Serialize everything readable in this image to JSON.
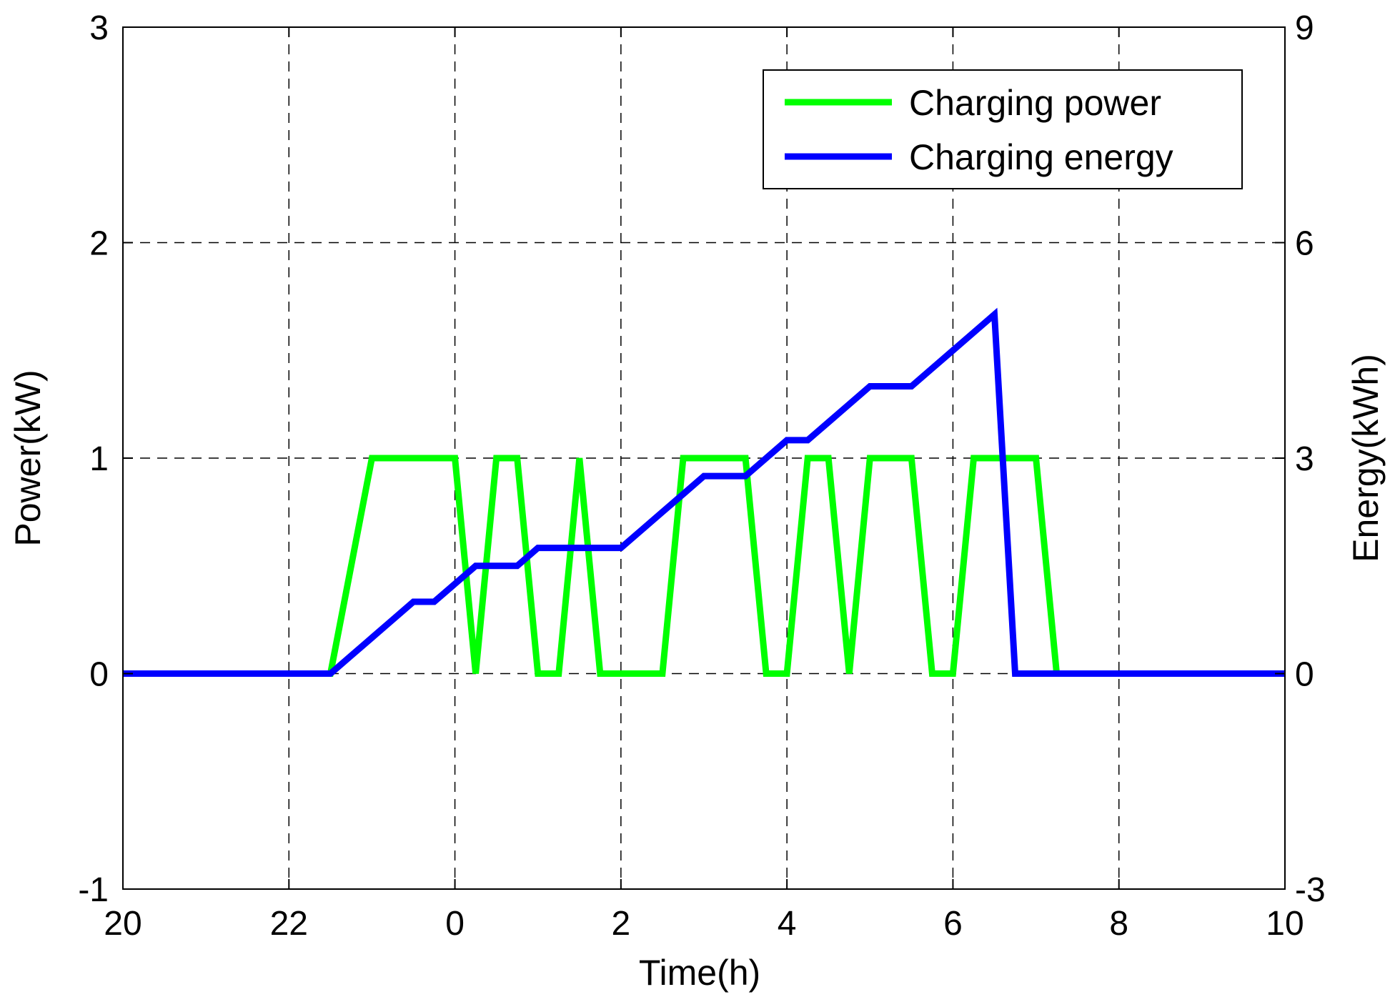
{
  "chart_data": {
    "type": "line",
    "xlabel": "Time(h)",
    "ylabel_left": "Power(kW)",
    "ylabel_right": "Energy(kWh)",
    "x_range": [
      20,
      34
    ],
    "x_ticks": [
      {
        "value": 20,
        "label": "20"
      },
      {
        "value": 22,
        "label": "22"
      },
      {
        "value": 24,
        "label": "0"
      },
      {
        "value": 26,
        "label": "2"
      },
      {
        "value": 28,
        "label": "4"
      },
      {
        "value": 30,
        "label": "6"
      },
      {
        "value": 32,
        "label": "8"
      },
      {
        "value": 34,
        "label": "10"
      }
    ],
    "ylim_left": [
      -1,
      3
    ],
    "y_ticks_left": [
      {
        "value": -1,
        "label": "-1"
      },
      {
        "value": 0,
        "label": "0"
      },
      {
        "value": 1,
        "label": "1"
      },
      {
        "value": 2,
        "label": "2"
      },
      {
        "value": 3,
        "label": "3"
      }
    ],
    "ylim_right": [
      -3,
      9
    ],
    "y_ticks_right": [
      {
        "value": -3,
        "label": "-3"
      },
      {
        "value": 0,
        "label": "0"
      },
      {
        "value": 3,
        "label": "3"
      },
      {
        "value": 6,
        "label": "6"
      },
      {
        "value": 9,
        "label": "9"
      }
    ],
    "grid": true,
    "grid_style": "dashed",
    "legend_position": "top-right",
    "series": [
      {
        "name": "Charging power",
        "axis": "left",
        "color": "#00ff00",
        "x": [
          20,
          22.5,
          23.0,
          23.25,
          23.5,
          23.75,
          24.0,
          24.25,
          24.5,
          24.75,
          25.0,
          25.25,
          25.5,
          25.75,
          26.0,
          26.25,
          26.5,
          26.75,
          27.0,
          27.25,
          27.5,
          27.75,
          28.0,
          28.25,
          28.5,
          28.75,
          29.0,
          29.25,
          29.5,
          29.75,
          30.0,
          30.25,
          30.5,
          30.75,
          31.0,
          31.25,
          34
        ],
        "y": [
          0,
          0,
          1,
          1,
          1,
          1,
          1,
          0,
          1,
          1,
          0,
          0,
          1,
          0,
          0,
          0,
          0,
          1,
          1,
          1,
          1,
          0,
          0,
          1,
          1,
          0,
          1,
          1,
          1,
          0,
          0,
          1,
          1,
          1,
          1,
          0,
          0
        ]
      },
      {
        "name": "Charging energy",
        "axis": "right",
        "color": "#0000ff",
        "x": [
          20,
          22.5,
          22.75,
          23.0,
          23.25,
          23.5,
          23.75,
          24.0,
          24.25,
          24.5,
          24.75,
          25.0,
          25.25,
          25.5,
          25.75,
          26.0,
          26.25,
          26.5,
          26.75,
          27.0,
          27.25,
          27.5,
          27.75,
          28.0,
          28.25,
          28.5,
          28.75,
          29.0,
          29.25,
          29.5,
          29.75,
          30.0,
          30.25,
          30.5,
          30.75,
          31.0,
          31.25,
          34
        ],
        "y": [
          0,
          0,
          0.25,
          0.5,
          0.75,
          1.0,
          1.0,
          1.25,
          1.5,
          1.5,
          1.5,
          1.75,
          1.75,
          1.75,
          1.75,
          1.75,
          2.0,
          2.25,
          2.5,
          2.75,
          2.75,
          2.75,
          3.0,
          3.25,
          3.25,
          3.5,
          3.75,
          4.0,
          4.0,
          4.0,
          4.25,
          4.5,
          4.75,
          5.0,
          0,
          0,
          0,
          0
        ]
      }
    ]
  }
}
